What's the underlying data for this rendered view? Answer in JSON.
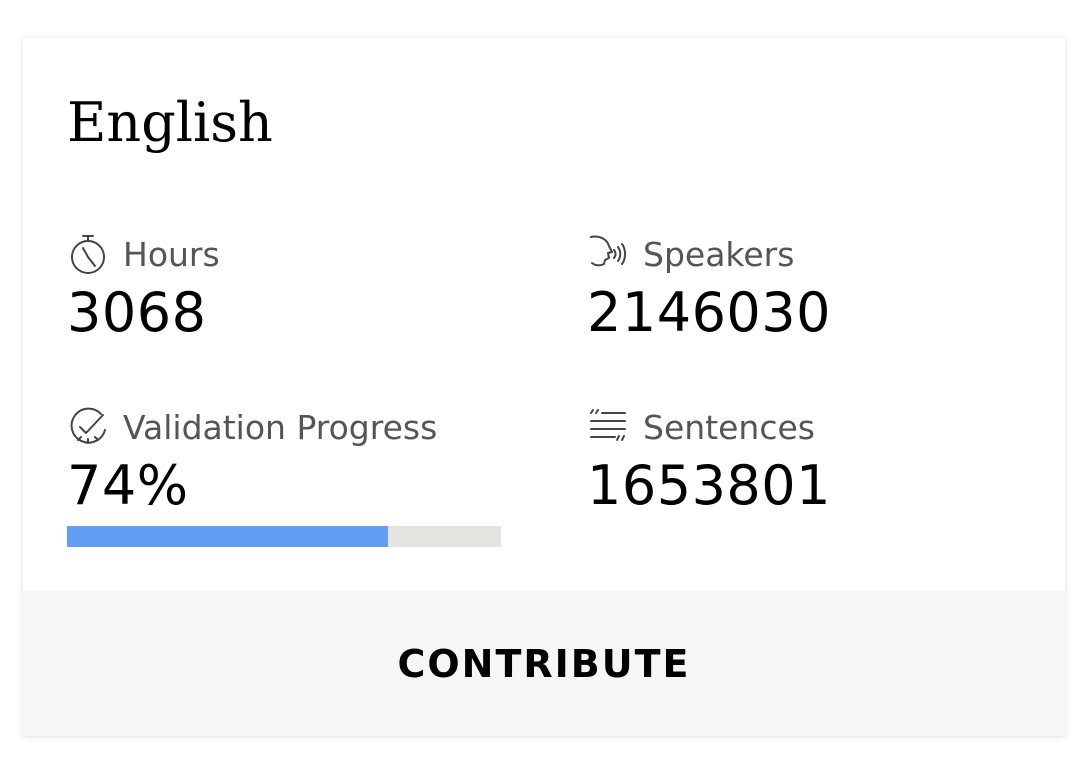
{
  "language": {
    "name": "English"
  },
  "stats": {
    "hours": {
      "label": "Hours",
      "value": "3068",
      "icon": "stopwatch-icon"
    },
    "speakers": {
      "label": "Speakers",
      "value": "2146030",
      "icon": "speaking-head-icon"
    },
    "validation": {
      "label": "Validation Progress",
      "value": "74%",
      "progress": 0.74,
      "icon": "check-circle-icon"
    },
    "sentences": {
      "label": "Sentences",
      "value": "1653801",
      "icon": "quote-lines-icon"
    }
  },
  "actions": {
    "contribute_label": "CONTRIBUTE"
  },
  "colors": {
    "progress_fill": "#629ff4",
    "progress_track": "#e5e4e1",
    "footer_bg": "#f6f6f4",
    "label_text": "#555555",
    "icon_stroke": "#444444"
  }
}
